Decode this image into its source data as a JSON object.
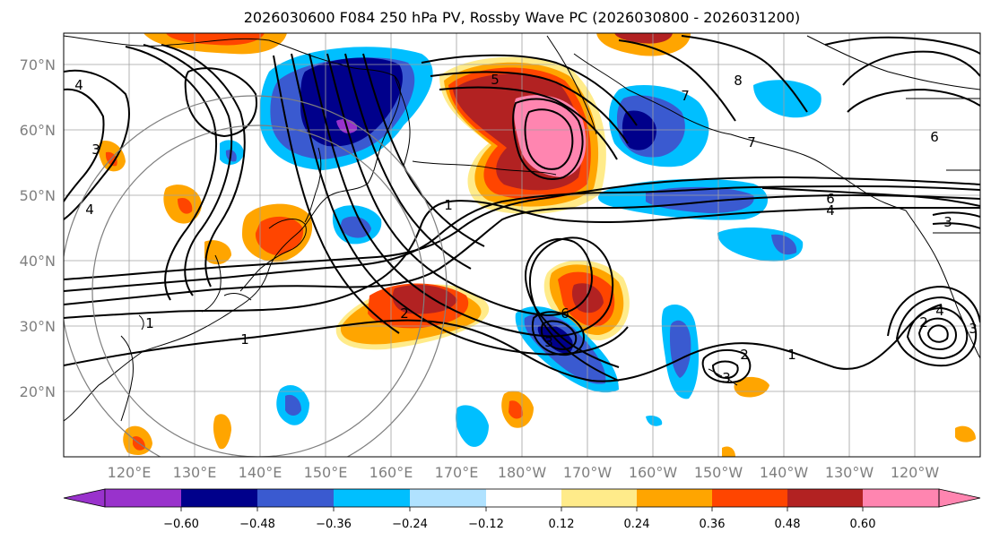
{
  "title": "2026030600 F084 250 hPa PV, Rossby Wave PC (2026030800 - 2026031200)",
  "map": {
    "lon_ticks": [
      "120°E",
      "130°E",
      "140°E",
      "150°E",
      "160°E",
      "170°E",
      "180°W",
      "170°W",
      "160°W",
      "150°W",
      "140°W",
      "130°W",
      "120°W"
    ],
    "lat_ticks": [
      "70°N",
      "60°N",
      "50°N",
      "40°N",
      "30°N",
      "20°N"
    ],
    "grid": true
  },
  "colorbar": {
    "tick_labels": [
      "−0.60",
      "−0.48",
      "−0.36",
      "−0.24",
      "−0.12",
      "0.12",
      "0.24",
      "0.36",
      "0.48",
      "0.60"
    ],
    "colors": [
      "#9932cc",
      "#00008b",
      "#3a5ad0",
      "#00bfff",
      "#b0e2ff",
      "#ffffff",
      "#ffeb8a",
      "#ffa500",
      "#ff4500",
      "#b22222",
      "#ff85b0"
    ]
  },
  "contour_labels": [
    {
      "id": "c-4-west",
      "text": "4"
    },
    {
      "id": "c-3-west",
      "text": "3"
    },
    {
      "id": "c-4-west-2",
      "text": "4"
    },
    {
      "id": "c-5-north",
      "text": "5"
    },
    {
      "id": "c-1-central",
      "text": "1"
    },
    {
      "id": "c-2-west",
      "text": "2"
    },
    {
      "id": "c-1-sw",
      "text": "1"
    },
    {
      "id": "c-1-south",
      "text": "1"
    },
    {
      "id": "c-6-pac",
      "text": "6"
    },
    {
      "id": "c-3-pac",
      "text": "3"
    },
    {
      "id": "c-7-ak",
      "text": "7"
    },
    {
      "id": "c-7-ak2",
      "text": "7"
    },
    {
      "id": "c-8-north",
      "text": "8"
    },
    {
      "id": "c-6-east",
      "text": "6"
    },
    {
      "id": "c-6-jet",
      "text": "6"
    },
    {
      "id": "c-4-jet",
      "text": "4"
    },
    {
      "id": "c-3-east",
      "text": "3"
    },
    {
      "id": "c-2-hawaii",
      "text": "2"
    },
    {
      "id": "c-1-hawaii",
      "text": "1"
    },
    {
      "id": "c-3-hawaii",
      "text": "3"
    },
    {
      "id": "c-2-baja",
      "text": "2"
    },
    {
      "id": "c-3-baja",
      "text": "3"
    },
    {
      "id": "c-4-baja",
      "text": "4"
    }
  ]
}
